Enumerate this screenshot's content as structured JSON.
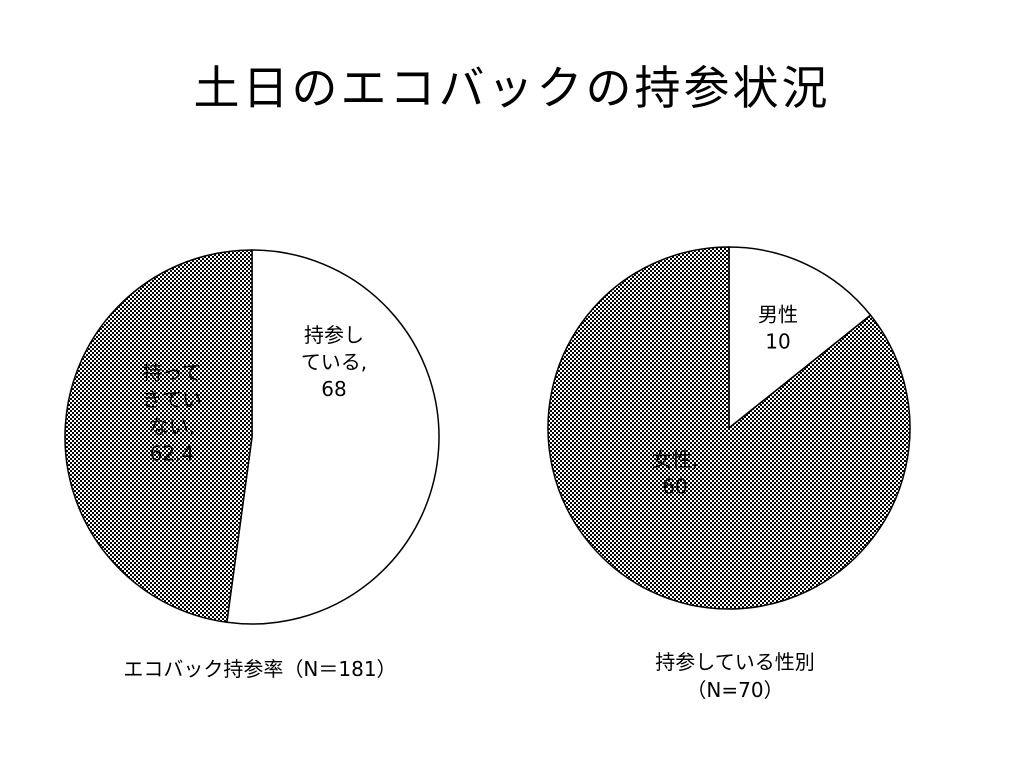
{
  "slide": {
    "title": "土日のエコバックの持参状況"
  },
  "chart_data": [
    {
      "type": "pie",
      "caption": "エコバック持参率（N＝181）",
      "slices": [
        {
          "name": "持参している",
          "value": 68,
          "label_lines": [
            "持参し",
            "ている,",
            "68"
          ],
          "fill": "white"
        },
        {
          "name": "持ってきていない",
          "value": 62.4,
          "label_lines": [
            "持って",
            "きてい",
            "ない,",
            "62.4"
          ],
          "fill": "pattern"
        }
      ]
    },
    {
      "type": "pie",
      "caption_lines": [
        "持参している性別",
        "（N=70）"
      ],
      "slices": [
        {
          "name": "男性",
          "value": 10,
          "label_lines": [
            "男性",
            "10"
          ],
          "fill": "white"
        },
        {
          "name": "女性",
          "value": 60,
          "label_lines": [
            "女性,",
            "60"
          ],
          "fill": "pattern"
        }
      ]
    }
  ],
  "colors": {
    "outline": "#000000",
    "pattern_dark": "#000000",
    "pattern_light": "#ffffff",
    "white_slice": "#ffffff"
  }
}
